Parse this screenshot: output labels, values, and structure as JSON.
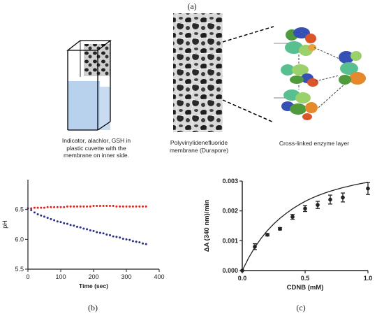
{
  "panels": {
    "a": "(a)",
    "b": "(b)",
    "c": "(c)"
  },
  "captions": {
    "cuvette": [
      "Indicator, alachlor, GSH in",
      "plastic cuvette with the",
      "membrane on inner side."
    ],
    "membrane": [
      "Polyvinylidenefluoride",
      "membrane (Durapore)"
    ],
    "enzyme": "Cross-linked enzyme layer"
  },
  "colors": {
    "liquid": "#b8d2ee",
    "red_series": "#e0201c",
    "blue_series": "#2a2f86",
    "axis": "#222222"
  },
  "chart_data": [
    {
      "type": "scatter",
      "xlabel": "Time (sec)",
      "ylabel": "pH",
      "xlim": [
        0,
        400
      ],
      "ylim": [
        5.5,
        7.0
      ],
      "xticks": [
        0,
        100,
        200,
        300,
        400
      ],
      "yticks": [
        5.5,
        6.0,
        6.5
      ],
      "ytick_labels": [
        "5.5",
        "6.0",
        "6.5"
      ],
      "series": [
        {
          "color": "#e0201c",
          "x": [
            0,
            10,
            20,
            30,
            40,
            50,
            60,
            70,
            80,
            90,
            100,
            110,
            120,
            130,
            140,
            150,
            160,
            170,
            180,
            190,
            200,
            210,
            220,
            230,
            240,
            250,
            260,
            270,
            280,
            290,
            300,
            310,
            320,
            330,
            340,
            350,
            360
          ],
          "y": [
            6.52,
            6.52,
            6.53,
            6.53,
            6.53,
            6.53,
            6.54,
            6.54,
            6.54,
            6.54,
            6.54,
            6.54,
            6.55,
            6.55,
            6.55,
            6.55,
            6.55,
            6.55,
            6.55,
            6.55,
            6.56,
            6.56,
            6.56,
            6.56,
            6.56,
            6.56,
            6.56,
            6.55,
            6.55,
            6.55,
            6.55,
            6.55,
            6.55,
            6.55,
            6.55,
            6.55,
            6.55
          ]
        },
        {
          "color": "#2a2f86",
          "x": [
            0,
            10,
            20,
            30,
            40,
            50,
            60,
            70,
            80,
            90,
            100,
            110,
            120,
            130,
            140,
            150,
            160,
            170,
            180,
            190,
            200,
            210,
            220,
            230,
            240,
            250,
            260,
            270,
            280,
            290,
            300,
            310,
            320,
            330,
            340,
            350,
            360
          ],
          "y": [
            6.52,
            6.49,
            6.45,
            6.42,
            6.4,
            6.38,
            6.36,
            6.34,
            6.32,
            6.3,
            6.29,
            6.27,
            6.26,
            6.24,
            6.23,
            6.21,
            6.2,
            6.18,
            6.17,
            6.15,
            6.14,
            6.12,
            6.11,
            6.1,
            6.08,
            6.07,
            6.05,
            6.04,
            6.03,
            6.01,
            6.0,
            5.99,
            5.97,
            5.96,
            5.95,
            5.93,
            5.92
          ]
        }
      ]
    },
    {
      "type": "scatter",
      "xlabel": "CDNB (mM)",
      "ylabel": "ΔA (340 nm)/min",
      "xlim": [
        0,
        1.0
      ],
      "ylim": [
        0,
        0.003
      ],
      "xticks": [
        0.0,
        0.5,
        1.0
      ],
      "xtick_labels": [
        "0.0",
        "0.5",
        "1.0"
      ],
      "yticks": [
        0,
        0.001,
        0.002,
        0.003
      ],
      "ytick_labels": [
        "0.000",
        "0.001",
        "0.002",
        "0.003"
      ],
      "points": {
        "x": [
          0,
          0.1,
          0.2,
          0.3,
          0.4,
          0.5,
          0.6,
          0.7,
          0.8,
          1.0
        ],
        "y": [
          0.0,
          0.0008,
          0.0012,
          0.0014,
          0.0018,
          0.00208,
          0.0022,
          0.00238,
          0.00245,
          0.00275
        ],
        "err": [
          0,
          0.0001,
          4e-05,
          4e-05,
          8e-05,
          0.0001,
          0.00012,
          0.00015,
          0.00015,
          0.0002
        ]
      },
      "fit": {
        "x": [
          0,
          0.05,
          0.1,
          0.15,
          0.2,
          0.25,
          0.3,
          0.35,
          0.4,
          0.45,
          0.5,
          0.55,
          0.6,
          0.65,
          0.7,
          0.75,
          0.8,
          0.85,
          0.9,
          0.95,
          1.0
        ],
        "y": [
          0,
          0.00042,
          0.00078,
          0.00108,
          0.00134,
          0.00156,
          0.00175,
          0.00192,
          0.00207,
          0.0022,
          0.00232,
          0.00242,
          0.00251,
          0.00259,
          0.00266,
          0.00272,
          0.00278,
          0.00283,
          0.00288,
          0.00292,
          0.00296
        ]
      }
    }
  ]
}
